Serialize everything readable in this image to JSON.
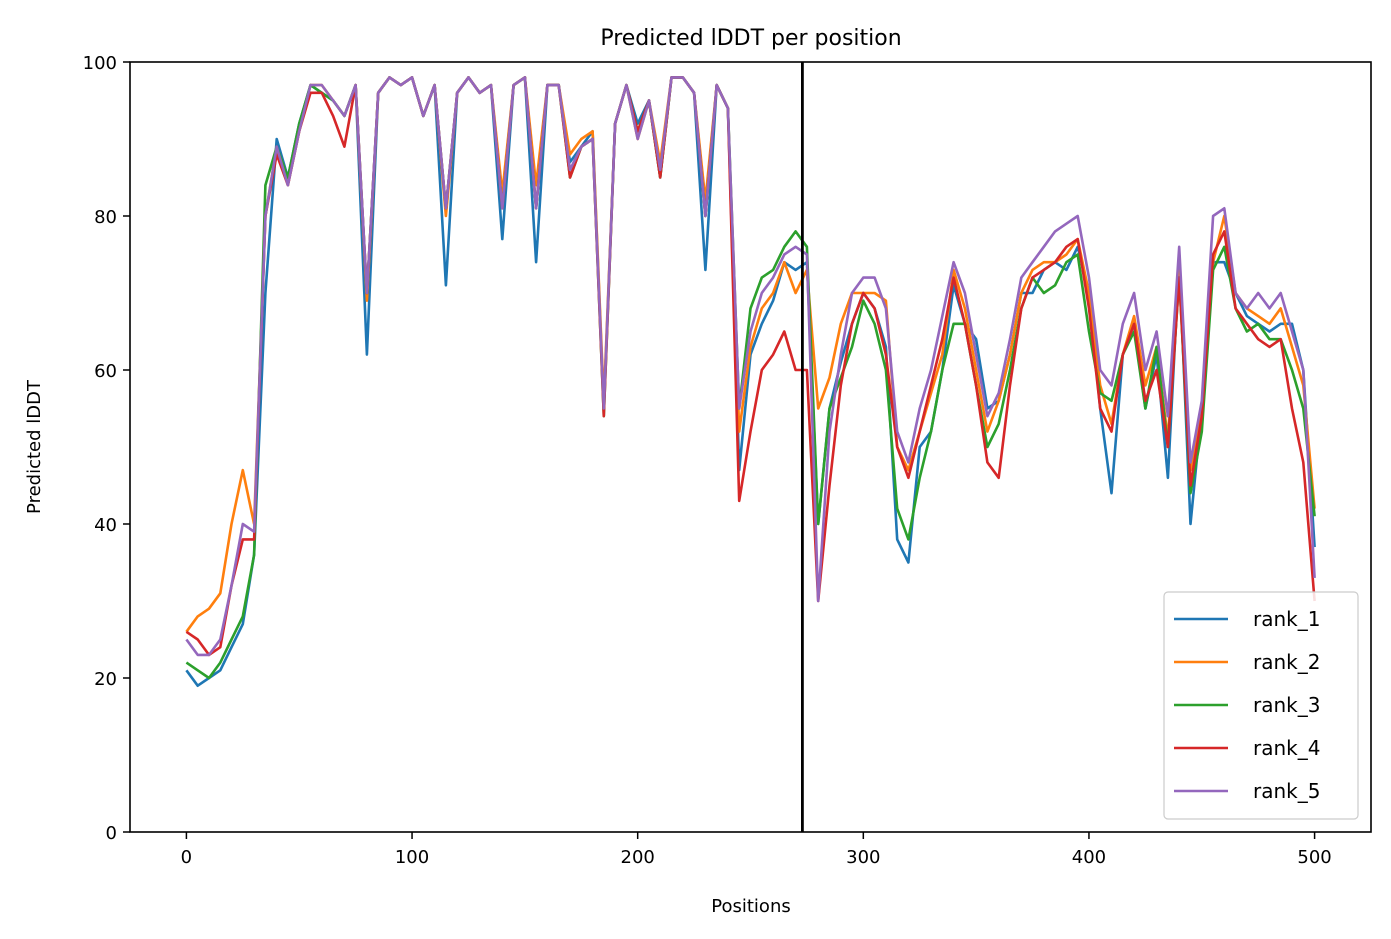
{
  "chart_data": {
    "type": "line",
    "title": "Predicted lDDT per position",
    "xlabel": "Positions",
    "ylabel": "Predicted lDDT",
    "xlim": [
      -25,
      525
    ],
    "ylim": [
      0,
      100
    ],
    "xticks": [
      0,
      100,
      200,
      300,
      400,
      500
    ],
    "yticks": [
      0,
      20,
      40,
      60,
      80,
      100
    ],
    "grid": false,
    "legend": "lower-right",
    "vline": {
      "x": 273,
      "color": "#000000"
    },
    "x_start": 0,
    "x_step": 5,
    "series": [
      {
        "name": "rank_1",
        "color": "#1f77b4",
        "values": [
          21,
          19,
          20,
          21,
          24,
          27,
          36,
          70,
          90,
          85,
          92,
          97,
          96,
          95,
          93,
          97,
          62,
          96,
          98,
          97,
          98,
          93,
          97,
          71,
          96,
          98,
          96,
          97,
          77,
          97,
          98,
          74,
          97,
          97,
          87,
          89,
          91,
          55,
          92,
          97,
          92,
          95,
          85,
          98,
          98,
          96,
          73,
          97,
          94,
          47,
          62,
          66,
          69,
          74,
          73,
          74,
          40,
          55,
          61,
          66,
          70,
          68,
          63,
          38,
          35,
          50,
          52,
          60,
          71,
          66,
          64,
          55,
          56,
          62,
          70,
          70,
          73,
          74,
          73,
          76,
          70,
          55,
          44,
          62,
          66,
          55,
          62,
          46,
          74,
          40,
          55,
          74,
          74,
          70,
          67,
          66,
          65,
          66,
          66,
          60,
          37
        ]
      },
      {
        "name": "rank_2",
        "color": "#ff7f0e",
        "values": [
          26,
          28,
          29,
          31,
          40,
          47,
          40,
          80,
          89,
          84,
          91,
          97,
          97,
          95,
          93,
          97,
          69,
          96,
          98,
          97,
          98,
          93,
          97,
          80,
          96,
          98,
          96,
          97,
          83,
          97,
          98,
          84,
          97,
          97,
          88,
          90,
          91,
          56,
          92,
          97,
          90,
          95,
          87,
          98,
          98,
          96,
          82,
          97,
          94,
          52,
          63,
          68,
          70,
          74,
          70,
          73,
          55,
          59,
          66,
          70,
          70,
          70,
          69,
          50,
          47,
          52,
          57,
          62,
          73,
          68,
          60,
          52,
          56,
          62,
          70,
          73,
          74,
          74,
          75,
          77,
          70,
          58,
          53,
          62,
          67,
          58,
          63,
          51,
          75,
          47,
          55,
          74,
          80,
          70,
          68,
          67,
          66,
          68,
          63,
          58,
          42
        ]
      },
      {
        "name": "rank_3",
        "color": "#2ca02c",
        "values": [
          22,
          21,
          20,
          22,
          25,
          28,
          36,
          84,
          89,
          85,
          92,
          97,
          96,
          95,
          93,
          97,
          70,
          96,
          98,
          97,
          98,
          93,
          97,
          81,
          96,
          98,
          96,
          97,
          81,
          97,
          98,
          81,
          97,
          97,
          85,
          89,
          90,
          54,
          92,
          97,
          91,
          95,
          85,
          98,
          98,
          96,
          80,
          97,
          94,
          55,
          68,
          72,
          73,
          76,
          78,
          76,
          40,
          55,
          59,
          63,
          69,
          66,
          60,
          42,
          38,
          46,
          52,
          60,
          66,
          66,
          58,
          50,
          53,
          60,
          68,
          72,
          70,
          71,
          74,
          75,
          65,
          57,
          56,
          62,
          65,
          55,
          63,
          50,
          72,
          44,
          52,
          73,
          76,
          68,
          65,
          66,
          64,
          64,
          60,
          55,
          41
        ]
      },
      {
        "name": "rank_4",
        "color": "#d62728",
        "values": [
          26,
          25,
          23,
          24,
          32,
          38,
          38,
          80,
          88,
          84,
          91,
          96,
          96,
          93,
          89,
          97,
          70,
          96,
          98,
          97,
          98,
          93,
          97,
          81,
          96,
          98,
          96,
          97,
          81,
          97,
          98,
          81,
          97,
          97,
          85,
          89,
          90,
          54,
          92,
          97,
          91,
          95,
          85,
          98,
          98,
          96,
          80,
          97,
          94,
          43,
          52,
          60,
          62,
          65,
          60,
          60,
          30,
          45,
          58,
          66,
          70,
          68,
          62,
          50,
          46,
          52,
          58,
          64,
          72,
          66,
          58,
          48,
          46,
          58,
          68,
          72,
          73,
          74,
          76,
          77,
          68,
          55,
          52,
          62,
          66,
          56,
          60,
          50,
          72,
          45,
          54,
          75,
          78,
          68,
          66,
          64,
          63,
          64,
          55,
          48,
          30
        ]
      },
      {
        "name": "rank_5",
        "color": "#9467bd",
        "values": [
          25,
          23,
          23,
          25,
          32,
          40,
          39,
          80,
          89,
          84,
          91,
          97,
          97,
          95,
          93,
          97,
          70,
          96,
          98,
          97,
          98,
          93,
          97,
          81,
          96,
          98,
          96,
          97,
          81,
          97,
          98,
          81,
          97,
          97,
          86,
          89,
          90,
          55,
          92,
          97,
          90,
          95,
          86,
          98,
          98,
          96,
          80,
          97,
          94,
          55,
          65,
          70,
          72,
          75,
          76,
          75,
          30,
          52,
          62,
          70,
          72,
          72,
          68,
          52,
          48,
          55,
          60,
          67,
          74,
          70,
          62,
          54,
          57,
          64,
          72,
          74,
          76,
          78,
          79,
          80,
          72,
          60,
          58,
          66,
          70,
          60,
          65,
          54,
          76,
          48,
          56,
          80,
          81,
          70,
          68,
          70,
          68,
          70,
          65,
          60,
          33
        ]
      }
    ]
  }
}
